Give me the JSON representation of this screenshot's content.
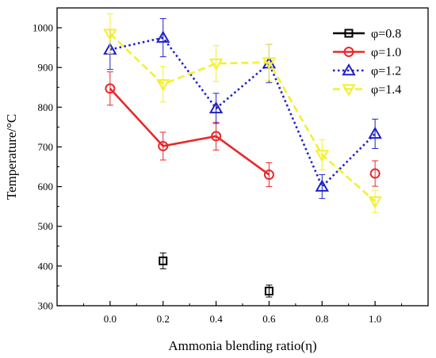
{
  "chart_data": {
    "type": "line",
    "title": "",
    "xlabel": "Ammonia blending ratio(η)",
    "ylabel": "Temperature/°C",
    "xlim": [
      -0.2,
      1.2
    ],
    "ylim": [
      300,
      1050
    ],
    "xticks": [
      0.0,
      0.2,
      0.4,
      0.6,
      0.8,
      1.0
    ],
    "xtick_labels": [
      "0.0",
      "0.2",
      "0.4",
      "0.6",
      "0.8",
      "1.0"
    ],
    "yticks": [
      300,
      400,
      500,
      600,
      700,
      800,
      900,
      1000
    ],
    "ytick_labels": [
      "300",
      "400",
      "500",
      "600",
      "700",
      "800",
      "900",
      "1000"
    ],
    "grid": false,
    "legend_position": "top-right",
    "series": [
      {
        "name": "φ=0.8",
        "color": "#000000",
        "marker": "square",
        "line_style": "solid",
        "x": [
          0.2,
          0.6
        ],
        "y": [
          413,
          337
        ],
        "err": [
          20,
          15
        ]
      },
      {
        "name": "φ=1.0",
        "color": "#e8282b",
        "marker": "circle",
        "line_style": "solid",
        "x": [
          0.0,
          0.2,
          0.4,
          0.6,
          1.0
        ],
        "y": [
          847,
          702,
          727,
          630,
          633
        ],
        "err": [
          42,
          35,
          35,
          30,
          32
        ],
        "line_segments": [
          [
            0,
            3
          ]
        ]
      },
      {
        "name": "φ=1.2",
        "color": "#1f20c8",
        "marker": "triangle-up",
        "line_style": "dotted",
        "x": [
          0.0,
          0.2,
          0.4,
          0.6,
          0.8,
          1.0
        ],
        "y": [
          945,
          975,
          797,
          910,
          600,
          733
        ],
        "err": [
          50,
          48,
          38,
          48,
          30,
          37
        ]
      },
      {
        "name": "φ=1.4",
        "color": "#f4f02c",
        "marker": "triangle-down",
        "line_style": "dashed",
        "x": [
          0.0,
          0.2,
          0.4,
          0.6,
          0.8,
          1.0
        ],
        "y": [
          985,
          858,
          910,
          913,
          680,
          563
        ],
        "err": [
          50,
          45,
          45,
          45,
          38,
          28
        ]
      }
    ]
  }
}
